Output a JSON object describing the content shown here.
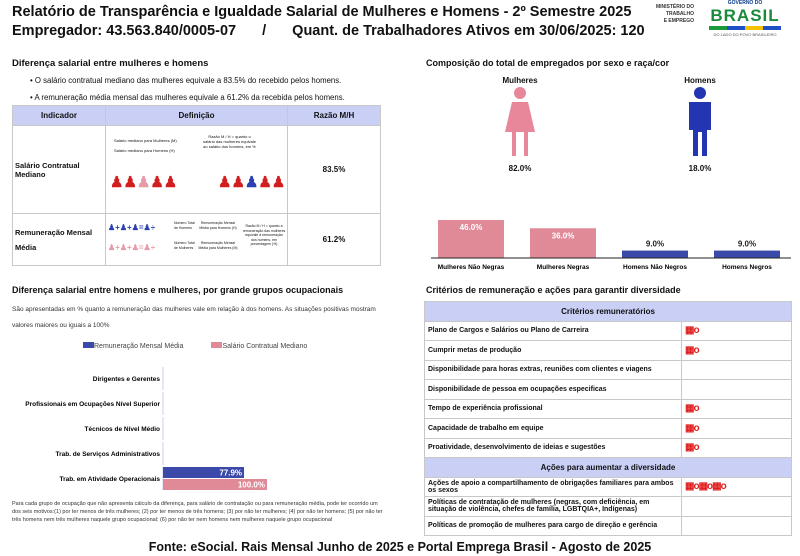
{
  "header": {
    "title": "Relatório de Transparência e Igualdade Salarial de Mulheres e Homens - 2º Semestre 2025",
    "employer": "Empregador: 43.563.840/0005-07",
    "separator": "/",
    "workers": "Quant. de Trabalhadores Ativos em 30/06/2025: 120"
  },
  "logo": {
    "ministry": [
      "MINISTÉRIO DO",
      "TRABALHO",
      "E EMPREGO"
    ],
    "gov_top": "GOVERNO DO",
    "gov_word": "BRASIL",
    "gov_sub": "DO LADO DO POVO BRASILEIRO"
  },
  "salary_diff": {
    "title": "Diferença salarial entre mulheres e homens",
    "bullets": [
      "O salário contratual mediano das mulheres equivale a 83.5% do recebido pelos homens.",
      "A remuneração média mensal das mulheres equivale a 61.2% da recebida pelos homens."
    ],
    "table": {
      "headers": [
        "Indicador",
        "Definição",
        "Razão M/H"
      ],
      "rows": [
        {
          "indicator": "Salário Contratual Mediano",
          "def_lines": [
            "Salário mediano para Mulheres (M)",
            "Salário mediano para Homens (H)"
          ],
          "def_note": "Razão M / H = quanto o salário das mulheres equivale ao salário dos homens, em %",
          "ratio": "83.5%"
        },
        {
          "indicator": "Remuneração Mensal Média",
          "def_lines": [
            "Número Total de Homens",
            "Remuneração Mensal Média para Homens (H)",
            "Número Total de Mulheres",
            "Remuneração Mensal Média para Mulheres (M)"
          ],
          "def_note": "Razão M / H = quanto a remuneração das mulheres equivale à remuneração dos homens, em porcentagem (%)",
          "ratio": "61.2%"
        }
      ]
    }
  },
  "composition": {
    "title": "Composição do total de empregados por sexo e raça/cor",
    "women_label": "Mulheres",
    "women_pct": "82.0%",
    "men_label": "Homens",
    "men_pct": "18.0%",
    "chart_data": {
      "type": "bar",
      "categories": [
        "Mulheres Não Negras",
        "Mulheres Negras",
        "Homens Não Negros",
        "Homens Negros"
      ],
      "values": [
        46.0,
        36.0,
        9.0,
        9.0
      ],
      "labels": [
        "46.0%",
        "36.0%",
        "9.0%",
        "9.0%"
      ],
      "colors": [
        "#e08a98",
        "#e08a98",
        "#3b4aa8",
        "#3b4aa8"
      ]
    }
  },
  "occupational": {
    "title": "Diferença salarial entre homens e mulheres, por grande grupos ocupacionais",
    "note": "São apresentadas em % quanto a remuneração das mulheres vale em relação à dos homens. As situações positivas mostram valores maiores ou iguais a 100%",
    "chart_data": {
      "type": "bar",
      "orientation": "horizontal",
      "categories": [
        "Dirigentes e Gerentes",
        "Profissionais em Ocupações Nível Superior",
        "Técnicos de Nível Médio",
        "Trab. de Serviços Administrativos",
        "Trab. em Atividade Operacionais"
      ],
      "series": [
        {
          "name": "Remuneração Mensal Média",
          "color": "#3b4aa8",
          "values": [
            null,
            null,
            null,
            null,
            77.9
          ],
          "labels": [
            "",
            "",
            "",
            "",
            "77.9%"
          ]
        },
        {
          "name": "Salário Contratual Mediano",
          "color": "#e08a98",
          "values": [
            null,
            null,
            null,
            null,
            100.0
          ],
          "labels": [
            "",
            "",
            "",
            "",
            "100.0%"
          ]
        }
      ],
      "legend": "top"
    },
    "footnote": "Para cada grupo de ocupação que não apresenta cálculo da diferença, para salário de contratação ou para remuneração média, pode ter ocorrido um dos seis motivos:(1) por ter menos de três mulheres; (2) por ter menos de três homens; (3) por não ter mulheres; (4) por não ter homens; (5) por não ter três homens nem três mulheres naquele grupo ocupacional; (6) por não ter nem homens nem mulheres naquele grupo ocupacional"
  },
  "criteria": {
    "title": "Critérios de remuneração e ações para garantir diversidade",
    "section1": "Critérios remuneratórios",
    "rows1": [
      {
        "label": "Plano de Cargos e Salários ou Plano de Carreira",
        "icons": 1
      },
      {
        "label": "Cumprir metas de produção",
        "icons": 1
      },
      {
        "label": "Disponibilidade para horas extras, reuniões com clientes e viagens",
        "icons": 0
      },
      {
        "label": "Disponibilidade de pessoa em ocupações especificas",
        "icons": 0
      },
      {
        "label": "Tempo de experiência profissional",
        "icons": 1
      },
      {
        "label": "Capacidade de trabalho em equipe",
        "icons": 1
      },
      {
        "label": "Proatividade, desenvolvimento de ideias e sugestões",
        "icons": 1
      }
    ],
    "section2": "Ações para aumentar a diversidade",
    "rows2": [
      {
        "label": "Ações de apoio a compartilhamento de obrigações familiares para ambos os sexos",
        "icons": 3
      },
      {
        "label": "Políticas de contratação de mulheres (negras, com deficiência, em situação de violência, chefes de família, LGBTQIA+, Indígenas)",
        "icons": 0
      },
      {
        "label": "Políticas de promoção de mulheres para cargo de direção e gerência",
        "icons": 0
      }
    ],
    "icon_color": "#e02020"
  },
  "footer": "Fonte: eSocial. Rais Mensal Junho de 2025 e Portal Emprega Brasil - Agosto de 2025"
}
